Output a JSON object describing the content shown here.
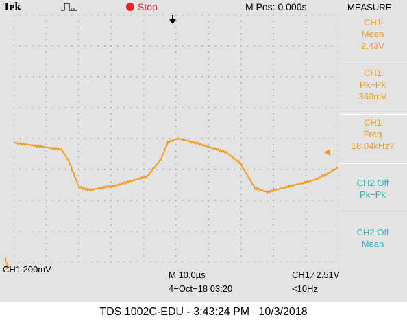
{
  "topbar": {
    "brand": "Tek",
    "trigger_icon": "pulse-trigger-icon",
    "status_label": "Stop",
    "status_color": "#e5262a",
    "mpos": "M Pos: 0.000s",
    "menu_title": "MEASURE"
  },
  "measure": [
    {
      "source": "CH1",
      "type": "Mean",
      "value": "2.43V",
      "color": "#f19a1a"
    },
    {
      "source": "CH1",
      "type": "Pk−Pk",
      "value": "360mV",
      "color": "#f19a1a"
    },
    {
      "source": "CH1",
      "type": "Freq",
      "value": "18.04kHz?",
      "color": "#f19a1a"
    },
    {
      "source": "CH2 Off",
      "type": "Pk−Pk",
      "color": "#28b5bf"
    },
    {
      "source": "CH2 Off",
      "type": "Mean",
      "color": "#28b5bf"
    }
  ],
  "bottom": {
    "ch1_scale": "CH1  200mV",
    "timebase": "M 10.0µs",
    "datetime": "4−Oct−18 03:20",
    "trigger_source": "CH1 ∕ 2.51V",
    "trigger_freq": "<10Hz"
  },
  "ground_marker": "1",
  "footer": "TDS 1002C-EDU - 3:43:24 PM   10/3/2018",
  "colors": {
    "ch1": "#f19a1a",
    "screen": "#e3e3e3",
    "grid_dots": "#9a9a9a"
  }
}
